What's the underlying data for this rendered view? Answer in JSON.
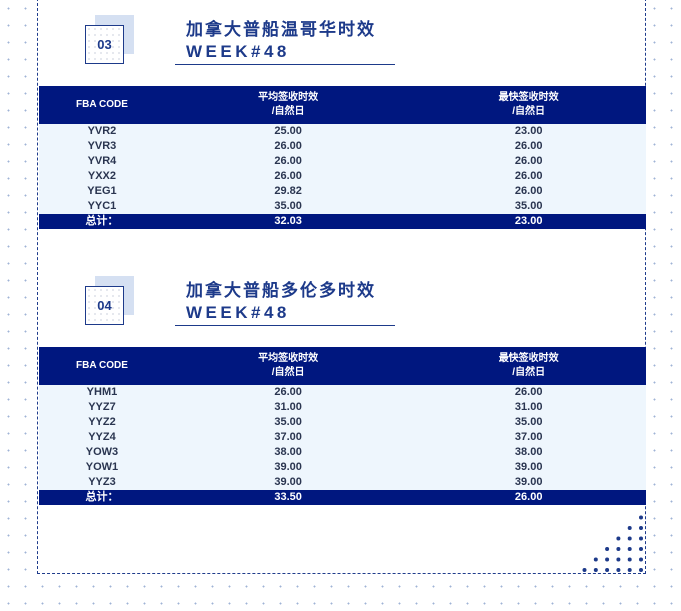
{
  "sections": [
    {
      "number": "03",
      "title": "加拿大普船温哥华时效",
      "week": "WEEK#48",
      "headers": [
        "FBA CODE",
        "平均签收时效\n/自然日",
        "最快签收时效\n/自然日"
      ],
      "header_lines": [
        [
          "FBA CODE"
        ],
        [
          "平均签收时效",
          "/自然日"
        ],
        [
          "最快签收时效",
          "/自然日"
        ]
      ],
      "rows": [
        [
          "YVR2",
          "25.00",
          "23.00"
        ],
        [
          "YVR3",
          "26.00",
          "26.00"
        ],
        [
          "YVR4",
          "26.00",
          "26.00"
        ],
        [
          "YXX2",
          "26.00",
          "26.00"
        ],
        [
          "YEG1",
          "29.82",
          "26.00"
        ],
        [
          "YYC1",
          "35.00",
          "35.00"
        ]
      ],
      "total": [
        "总计：",
        "32.03",
        "23.00"
      ]
    },
    {
      "number": "04",
      "title": "加拿大普船多伦多时效",
      "week": "WEEK#48",
      "header_lines": [
        [
          "FBA CODE"
        ],
        [
          "平均签收时效",
          "/自然日"
        ],
        [
          "最快签收时效",
          "/自然日"
        ]
      ],
      "rows": [
        [
          "YHM1",
          "26.00",
          "26.00"
        ],
        [
          "YYZ7",
          "31.00",
          "31.00"
        ],
        [
          "YYZ2",
          "35.00",
          "35.00"
        ],
        [
          "YYZ4",
          "37.00",
          "37.00"
        ],
        [
          "YOW3",
          "38.00",
          "38.00"
        ],
        [
          "YOW1",
          "39.00",
          "39.00"
        ],
        [
          "YYZ3",
          "39.00",
          "39.00"
        ]
      ],
      "total": [
        "总计：",
        "33.50",
        "26.00"
      ]
    }
  ],
  "colors": {
    "header": "#00177f",
    "row": "#eef6fd",
    "accent": "#1d3a8a"
  }
}
